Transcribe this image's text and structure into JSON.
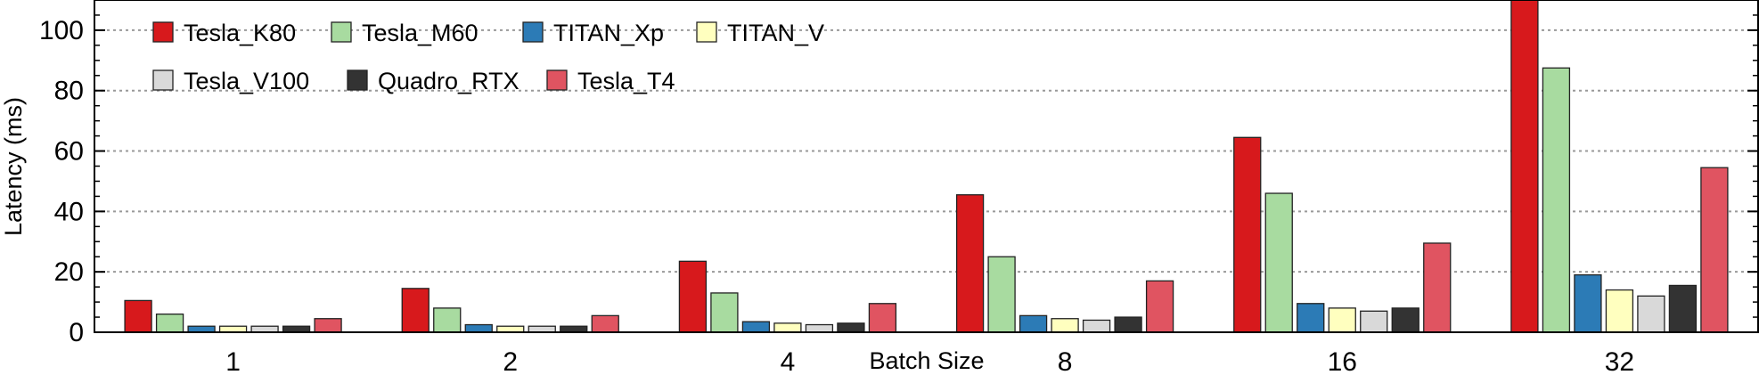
{
  "chart_data": {
    "type": "bar",
    "title": "",
    "xlabel": "Batch Size",
    "ylabel": "Latency (ms)",
    "ylim": [
      0,
      110
    ],
    "yticks": [
      0,
      20,
      40,
      60,
      80,
      100
    ],
    "grid": "horizontal dotted",
    "legend_position": "top-left",
    "categories": [
      "1",
      "2",
      "4",
      "8",
      "16",
      "32"
    ],
    "series": [
      {
        "name": "Tesla_K80",
        "color": "#d7191c",
        "values": [
          10.5,
          14.5,
          23.5,
          45.5,
          64.5,
          110
        ]
      },
      {
        "name": "Tesla_M60",
        "color": "#a8dba0",
        "values": [
          6,
          8,
          13,
          25,
          46,
          87.5
        ]
      },
      {
        "name": "TITAN_Xp",
        "color": "#2c7bb6",
        "values": [
          2,
          2.5,
          3.5,
          5.5,
          9.5,
          19
        ]
      },
      {
        "name": "TITAN_V",
        "color": "#ffffbf",
        "values": [
          2,
          2,
          3,
          4.5,
          8,
          14
        ]
      },
      {
        "name": "Tesla_V100",
        "color": "#d9d9d9",
        "values": [
          2,
          2,
          2.5,
          4,
          7,
          12
        ]
      },
      {
        "name": "Quadro_RTX",
        "color": "#333333",
        "values": [
          2,
          2,
          3,
          5,
          8,
          15.5
        ]
      },
      {
        "name": "Tesla_T4",
        "color": "#e05461",
        "values": [
          4.5,
          5.5,
          9.5,
          17,
          29.5,
          54.5
        ]
      }
    ]
  }
}
